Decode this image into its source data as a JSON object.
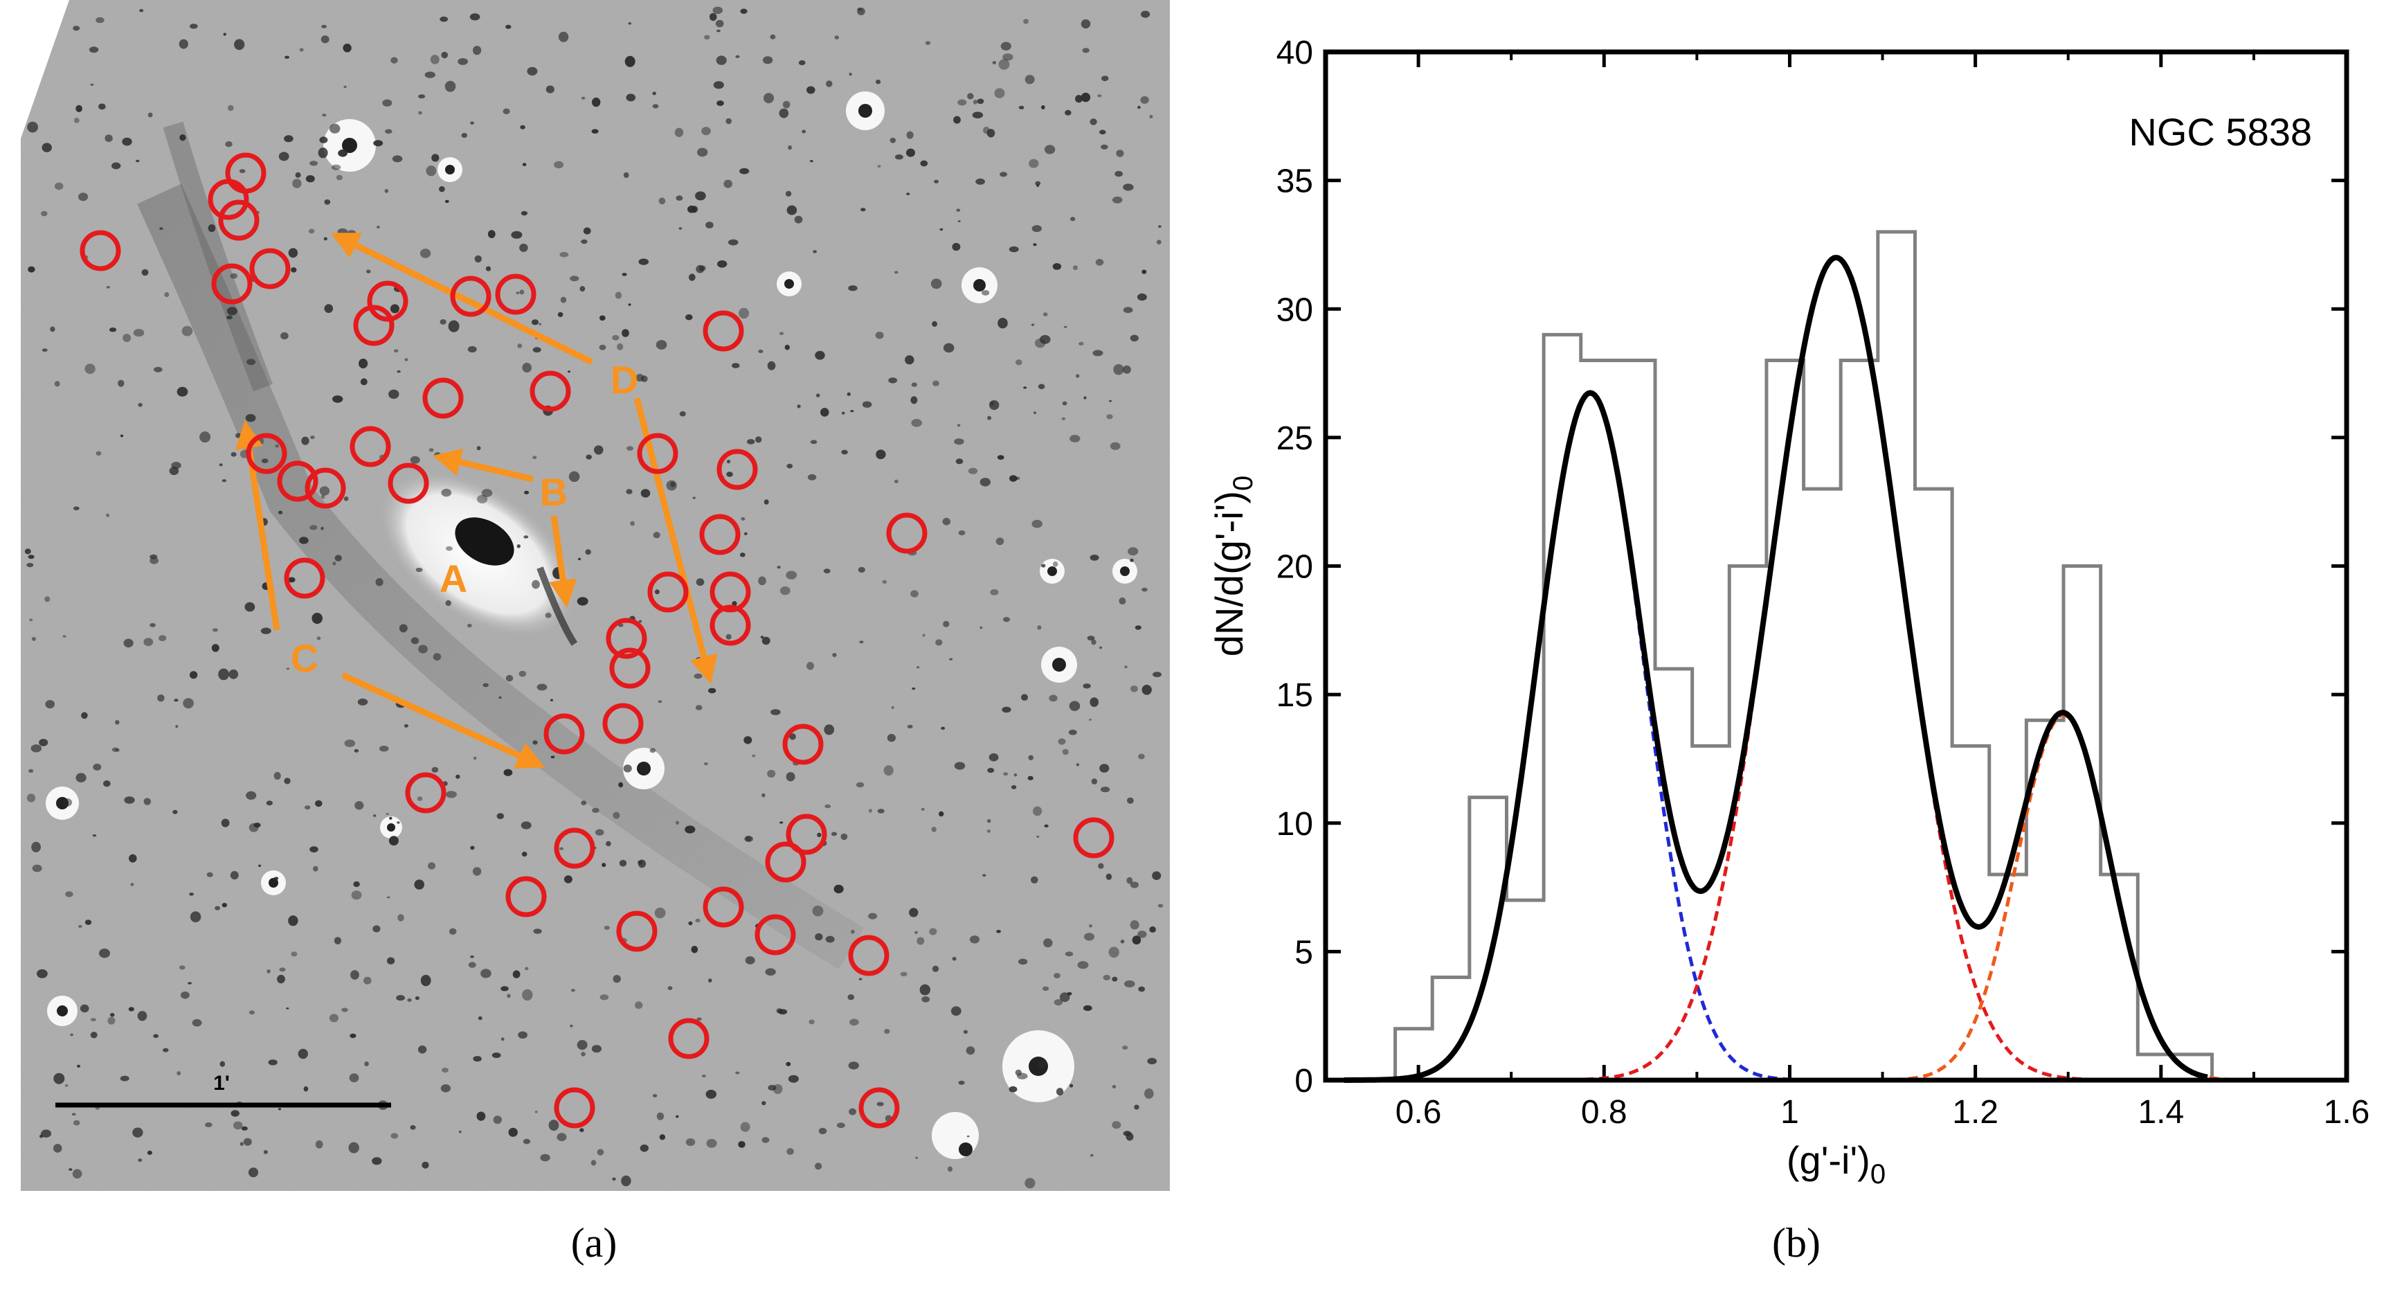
{
  "panel_a": {
    "caption": "(a)",
    "scale_bar_label": "1'",
    "labels": {
      "A": "A",
      "B": "B",
      "C": "C",
      "D": "D"
    },
    "colors": {
      "circle": "#e41a1c",
      "arrow": "#f7931e",
      "label": "#f7931e"
    }
  },
  "panel_b": {
    "caption": "(b)"
  },
  "chart_data": {
    "type": "histogram",
    "title": "",
    "annotation": "NGC 5838",
    "xlabel": "(g'-i')",
    "xlabel_subscript": "0",
    "ylabel": "dN/d(g'-i')",
    "ylabel_subscript": "0",
    "xlim": [
      0.5,
      1.6
    ],
    "ylim": [
      0,
      40
    ],
    "xticks": [
      0.6,
      0.8,
      1.0,
      1.2,
      1.4,
      1.6
    ],
    "xtick_labels": [
      "0.6",
      "0.8",
      "1",
      "1.2",
      "1.4",
      "1.6"
    ],
    "yticks": [
      0,
      5,
      10,
      15,
      20,
      25,
      30,
      35,
      40
    ],
    "ytick_labels": [
      "0",
      "5",
      "10",
      "15",
      "20",
      "25",
      "30",
      "35",
      "40"
    ],
    "histogram": {
      "bin_width": 0.04,
      "bin_edges": [
        0.575,
        0.615,
        0.655,
        0.695,
        0.735,
        0.775,
        0.815,
        0.855,
        0.895,
        0.935,
        0.975,
        1.015,
        1.055,
        1.095,
        1.135,
        1.175,
        1.215,
        1.255,
        1.295,
        1.335,
        1.375,
        1.415,
        1.455,
        1.495
      ],
      "counts": [
        2,
        4,
        11,
        7,
        29,
        28,
        28,
        16,
        13,
        20,
        28,
        23,
        28,
        33,
        23,
        13,
        8,
        14,
        20,
        8,
        1,
        1,
        0
      ],
      "color": "#808080"
    },
    "gaussians": [
      {
        "name": "blue",
        "mean": 0.785,
        "sigma": 0.058,
        "amplitude": 26.7,
        "color": "#1f2ad6"
      },
      {
        "name": "red",
        "mean": 1.05,
        "sigma": 0.072,
        "amplitude": 32,
        "color": "#e41a1c"
      },
      {
        "name": "orange",
        "mean": 1.295,
        "sigma": 0.05,
        "amplitude": 14.2,
        "color": "#f05a1a"
      }
    ],
    "total_fit_color": "#000000"
  }
}
